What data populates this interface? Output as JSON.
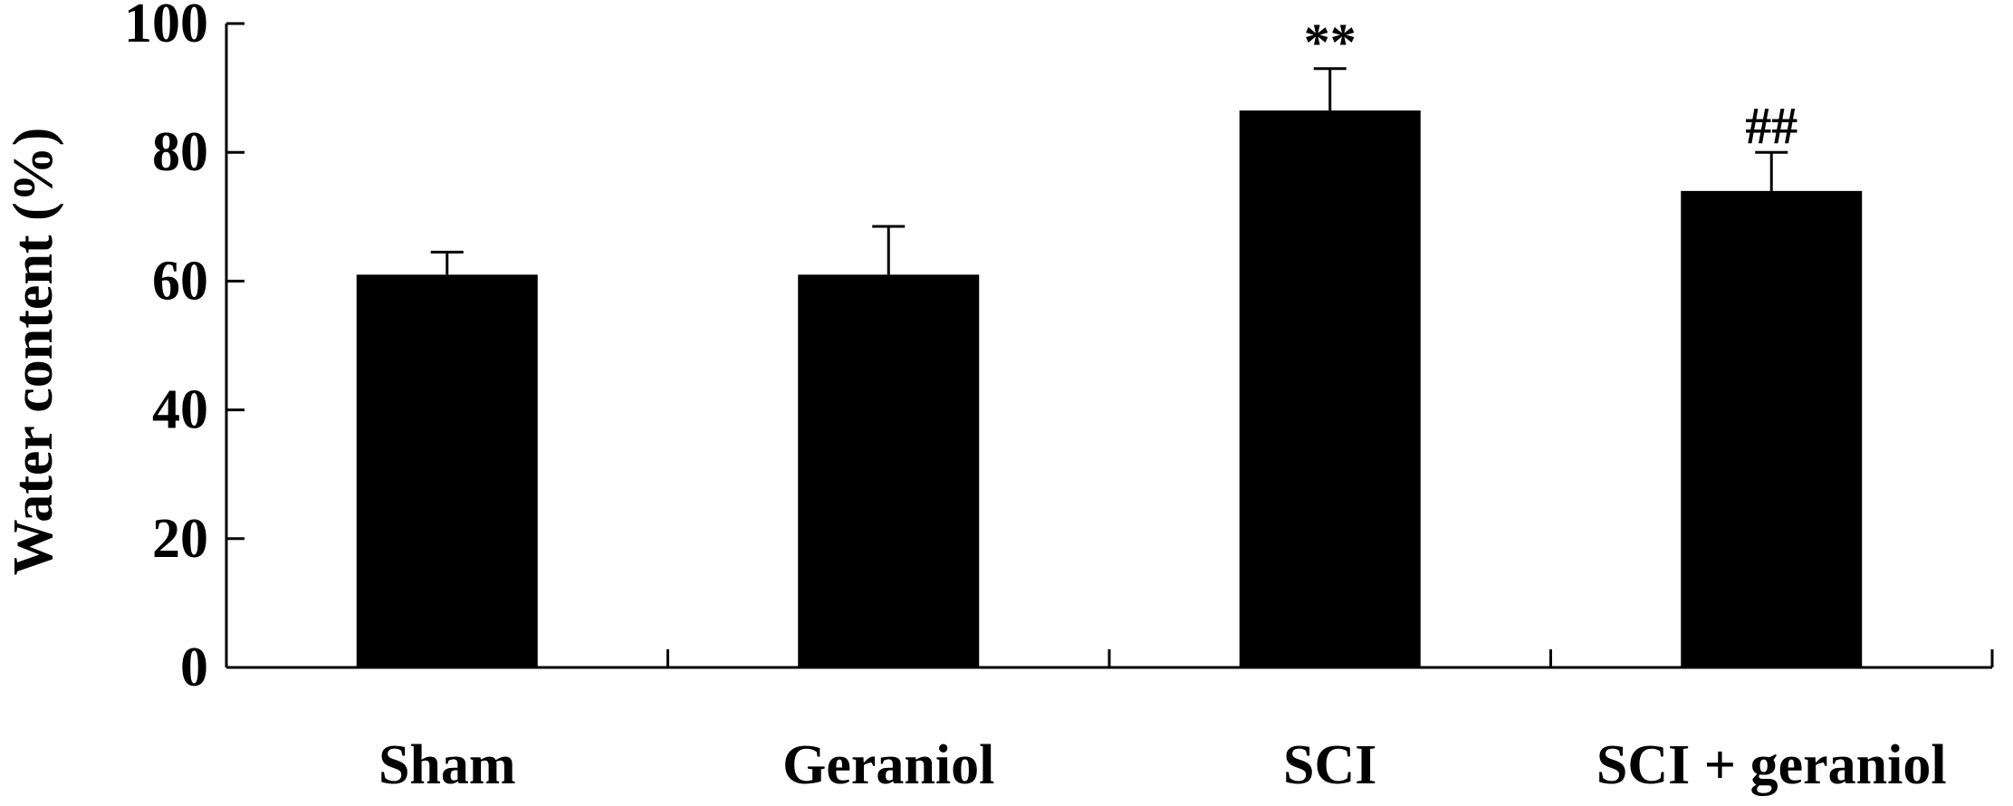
{
  "chart_data": {
    "type": "bar",
    "categories": [
      "Sham",
      "Geraniol",
      "SCI",
      "SCI + geraniol"
    ],
    "values": [
      61,
      61,
      86.5,
      74
    ],
    "error_bars": [
      3.5,
      7.5,
      6.5,
      6
    ],
    "annotations": [
      "",
      "",
      "**",
      "##"
    ],
    "ylabel": "Water content (%)",
    "xlabel": "",
    "ylim": [
      0,
      100
    ],
    "yticks": [
      "0",
      "20",
      "40",
      "60",
      "80",
      "100"
    ],
    "bar_color": "#000000",
    "grid": false
  }
}
